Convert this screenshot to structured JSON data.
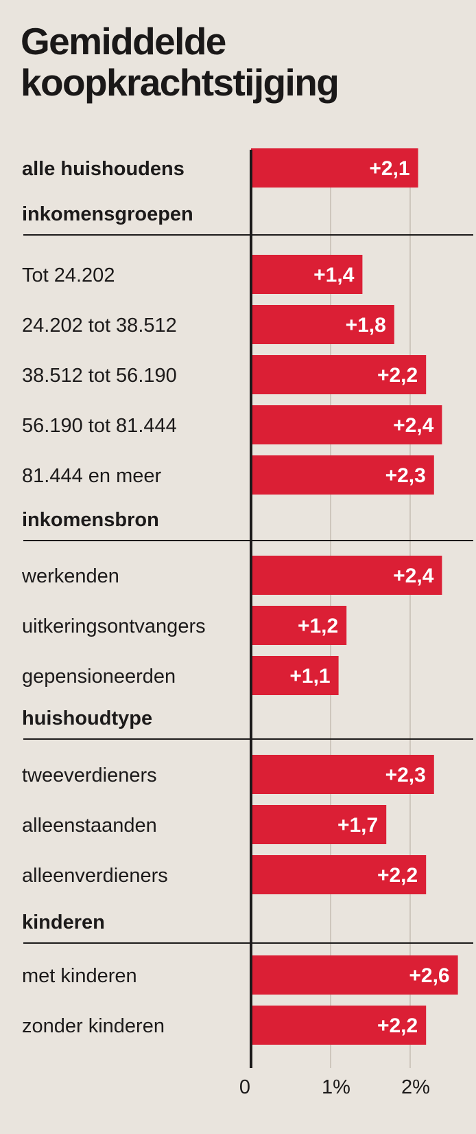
{
  "title": [
    "Gemiddelde",
    "koopkrachtstijging"
  ],
  "colors": {
    "bar": "#db1f35",
    "background": "#e9e4dd",
    "text": "#1c1a1a",
    "grid": "#bfb7ac"
  },
  "chart_data": {
    "type": "bar",
    "orientation": "horizontal",
    "title": "Gemiddelde koopkrachtstijging",
    "xlim": [
      0,
      2.7
    ],
    "xticks": [
      0,
      1,
      2
    ],
    "tick_labels": [
      "0",
      "1%",
      "2%"
    ],
    "grid": true,
    "rows": [
      {
        "kind": "category",
        "label": "alle huishoudens",
        "value": 2.1,
        "value_label": "+2,1"
      },
      {
        "kind": "heading",
        "label": "inkomensgroepen"
      },
      {
        "kind": "category",
        "label": "Tot 24.202",
        "value": 1.4,
        "value_label": "+1,4"
      },
      {
        "kind": "category",
        "label": "24.202 tot 38.512",
        "value": 1.8,
        "value_label": "+1,8"
      },
      {
        "kind": "category",
        "label": "38.512 tot 56.190",
        "value": 2.2,
        "value_label": "+2,2"
      },
      {
        "kind": "category",
        "label": "56.190 tot 81.444",
        "value": 2.4,
        "value_label": "+2,4"
      },
      {
        "kind": "category",
        "label": "81.444 en meer",
        "value": 2.3,
        "value_label": "+2,3"
      },
      {
        "kind": "heading",
        "label": "inkomensbron"
      },
      {
        "kind": "category",
        "label": "werkenden",
        "value": 2.4,
        "value_label": "+2,4"
      },
      {
        "kind": "category",
        "label": "uitkeringsontvangers",
        "value": 1.2,
        "value_label": "+1,2"
      },
      {
        "kind": "category",
        "label": "gepensioneerden",
        "value": 1.1,
        "value_label": "+1,1"
      },
      {
        "kind": "heading",
        "label": "huishoudtype"
      },
      {
        "kind": "category",
        "label": "tweeverdieners",
        "value": 2.3,
        "value_label": "+2,3"
      },
      {
        "kind": "category",
        "label": "alleenstaanden",
        "value": 1.7,
        "value_label": "+1,7"
      },
      {
        "kind": "category",
        "label": "alleenverdieners",
        "value": 2.2,
        "value_label": "+2,2"
      },
      {
        "kind": "heading",
        "label": "kinderen"
      },
      {
        "kind": "category",
        "label": "met kinderen",
        "value": 2.6,
        "value_label": "+2,6"
      },
      {
        "kind": "category",
        "label": "zonder kinderen",
        "value": 2.2,
        "value_label": "+2,2"
      }
    ]
  }
}
